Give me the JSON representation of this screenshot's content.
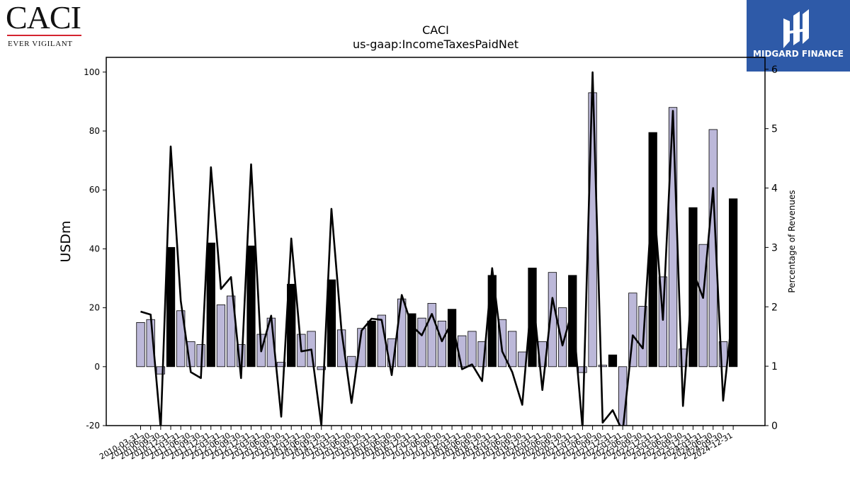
{
  "logos": {
    "company_wordmark": "CACI",
    "company_tagline": "EVER VIGILANT",
    "publisher_name": "MIDGARD FINANCE"
  },
  "chart_data": {
    "type": "bar",
    "title": "CACI",
    "subtitle": "us-gaap:IncomeTaxesPaidNet",
    "ylabel": "USDm",
    "y2label": "Percentage of Revenues",
    "ylim": [
      -20,
      105
    ],
    "y2lim": [
      0,
      6.2
    ],
    "yticks": [
      -20,
      0,
      20,
      40,
      60,
      80,
      100
    ],
    "y2ticks": [
      0,
      1,
      2,
      3,
      4,
      5,
      6
    ],
    "grid": false,
    "colors": {
      "bar_quarter": "#bcb8d9",
      "bar_annual": "#000000",
      "line": "#000000"
    },
    "x": [
      "2010-03-31",
      "2010-06-30",
      "2010-09-30",
      "2010-12-31",
      "2011-03-31",
      "2011-06-30",
      "2011-09-30",
      "2011-12-31",
      "2012-03-31",
      "2012-06-30",
      "2012-09-30",
      "2012-12-31",
      "2013-03-31",
      "2013-06-30",
      "2013-09-30",
      "2013-12-31",
      "2014-03-31",
      "2014-06-30",
      "2014-09-30",
      "2014-12-31",
      "2015-03-31",
      "2015-06-30",
      "2015-09-30",
      "2015-12-31",
      "2016-03-31",
      "2016-06-30",
      "2016-09-30",
      "2016-12-31",
      "2017-03-31",
      "2017-06-30",
      "2017-09-30",
      "2017-12-31",
      "2018-03-31",
      "2018-06-30",
      "2018-09-30",
      "2018-12-31",
      "2019-03-31",
      "2019-06-30",
      "2019-09-30",
      "2019-12-31",
      "2020-03-31",
      "2020-06-30",
      "2020-09-30",
      "2020-12-31",
      "2021-03-31",
      "2021-06-30",
      "2021-09-30",
      "2021-12-31",
      "2022-03-31",
      "2022-06-30",
      "2022-09-30",
      "2022-12-31",
      "2023-03-31",
      "2023-06-30",
      "2023-09-30",
      "2023-12-31",
      "2024-03-31",
      "2024-06-30",
      "2024-09-30",
      "2024-12-31"
    ],
    "series": [
      {
        "kind": "bar",
        "values": [
          15.0,
          16.0,
          -2.5,
          40.5,
          19.0,
          8.5,
          7.5,
          42.0,
          21.0,
          24.0,
          7.5,
          41.0,
          11.0,
          16.5,
          1.5,
          28.0,
          11.0,
          12.0,
          -1.0,
          29.5,
          12.5,
          3.5,
          13.0,
          15.5,
          17.5,
          9.5,
          23.0,
          18.0,
          16.5,
          21.5,
          15.5,
          19.5,
          10.5,
          12.0,
          8.5,
          31.0,
          16.0,
          12.0,
          5.0,
          33.5,
          8.5,
          32.0,
          20.0,
          31.0,
          -2.0,
          93.0,
          0.5,
          4.0,
          -21.0,
          25.0,
          20.5,
          79.5,
          30.5,
          88.0,
          6.0,
          54.0,
          41.5,
          80.5,
          8.5,
          57.0
        ],
        "annual": [
          false,
          false,
          false,
          true,
          false,
          false,
          false,
          true,
          false,
          false,
          false,
          true,
          false,
          false,
          false,
          true,
          false,
          false,
          false,
          true,
          false,
          false,
          false,
          true,
          false,
          false,
          false,
          true,
          false,
          false,
          false,
          true,
          false,
          false,
          false,
          true,
          false,
          false,
          false,
          true,
          false,
          false,
          false,
          true,
          false,
          false,
          false,
          true,
          false,
          false,
          false,
          true,
          false,
          false,
          false,
          true,
          false,
          false,
          false,
          true
        ]
      },
      {
        "kind": "line",
        "axis": "right",
        "values": [
          1.92,
          1.87,
          -0.05,
          4.7,
          2.1,
          0.9,
          0.8,
          4.35,
          2.3,
          2.5,
          0.8,
          4.4,
          1.25,
          1.85,
          0.15,
          3.15,
          1.25,
          1.28,
          0.0,
          3.65,
          1.6,
          0.38,
          1.6,
          1.8,
          1.78,
          0.85,
          2.2,
          1.68,
          1.52,
          1.88,
          1.42,
          1.75,
          0.95,
          1.03,
          0.75,
          2.65,
          1.25,
          0.9,
          0.35,
          2.3,
          0.6,
          2.15,
          1.35,
          1.95,
          -0.05,
          5.95,
          0.05,
          0.26,
          -0.1,
          1.52,
          1.3,
          4.0,
          1.78,
          5.3,
          0.33,
          2.6,
          2.15,
          4.0,
          0.42,
          2.0
        ]
      }
    ]
  }
}
